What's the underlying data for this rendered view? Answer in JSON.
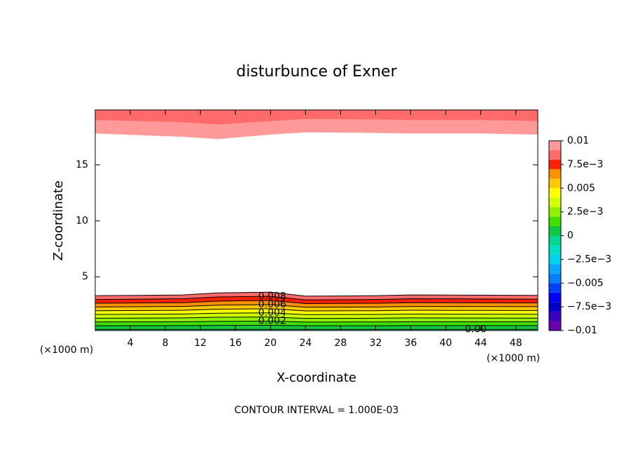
{
  "chart_data": {
    "type": "contour",
    "title": "disturbunce of Exner",
    "x_label": "X-coordinate",
    "y_label": "Z-coordinate",
    "x_unit_left": "(×1000 m)",
    "x_unit_right": "(×1000 m)",
    "footer": "CONTOUR INTERVAL = 1.000E-03",
    "xlim": [
      0,
      50.5
    ],
    "ylim": [
      0.2,
      19.9
    ],
    "xticks": [
      4,
      8,
      12,
      16,
      20,
      24,
      28,
      32,
      36,
      40,
      44,
      48
    ],
    "yticks": [
      5,
      10,
      15
    ],
    "x": [
      0,
      10,
      14,
      20,
      24,
      32,
      36,
      44,
      50.5
    ],
    "bottom_contours": [
      {
        "level": 0.009,
        "z": [
          3.31,
          3.38,
          3.56,
          3.63,
          3.27,
          3.31,
          3.38,
          3.36,
          3.34
        ]
      },
      {
        "level": 0.008,
        "label": "0.008",
        "z": [
          2.97,
          3.04,
          3.2,
          3.26,
          2.94,
          2.97,
          3.04,
          3.02,
          3.0
        ]
      },
      {
        "level": 0.007,
        "z": [
          2.64,
          2.69,
          2.83,
          2.89,
          2.61,
          2.64,
          2.69,
          2.68,
          2.67
        ]
      },
      {
        "level": 0.006,
        "label": "0.006",
        "z": [
          2.3,
          2.35,
          2.47,
          2.52,
          2.28,
          2.3,
          2.35,
          2.34,
          2.33
        ]
      },
      {
        "level": 0.005,
        "z": [
          1.97,
          2.01,
          2.11,
          2.15,
          1.95,
          1.97,
          2.01,
          2.0,
          1.99
        ]
      },
      {
        "level": 0.004,
        "label": "0.004",
        "z": [
          1.64,
          1.67,
          1.75,
          1.78,
          1.62,
          1.64,
          1.67,
          1.66,
          1.65
        ]
      },
      {
        "level": 0.003,
        "z": [
          1.3,
          1.33,
          1.39,
          1.41,
          1.29,
          1.3,
          1.33,
          1.32,
          1.31
        ]
      },
      {
        "level": 0.002,
        "label": "0.002",
        "z": [
          0.97,
          0.98,
          1.02,
          1.04,
          0.96,
          0.97,
          0.98,
          0.98,
          0.98
        ]
      },
      {
        "level": 0.001,
        "z": [
          0.63,
          0.64,
          0.66,
          0.67,
          0.63,
          0.63,
          0.64,
          0.64,
          0.64
        ]
      },
      {
        "level": 0,
        "label": "0.00",
        "z": [
          0.3,
          0.3,
          0.3,
          0.3,
          0.3,
          0.3,
          0.3,
          0.3,
          0.3
        ]
      }
    ],
    "top_contours": [
      {
        "level": 0.009,
        "z": [
          17.8,
          17.5,
          17.3,
          17.7,
          17.9,
          17.85,
          17.8,
          17.8,
          17.7
        ]
      },
      {
        "level": 0.008,
        "z": [
          19.0,
          18.8,
          18.6,
          18.9,
          19.1,
          19.05,
          19.0,
          19.0,
          18.9
        ]
      }
    ],
    "clim": [
      -0.01,
      0.01
    ],
    "colors": [
      "#6a00b0",
      "#3a00c0",
      "#0000c8",
      "#0000ff",
      "#0040ff",
      "#0080ff",
      "#00a8ff",
      "#00d0f0",
      "#00e0c0",
      "#00d890",
      "#10c840",
      "#40e000",
      "#90f000",
      "#d0ff00",
      "#ffff00",
      "#ffc800",
      "#ff9000",
      "#ff2000",
      "#ff6a6a",
      "#ff9a9a"
    ],
    "cticks": [
      {
        "value": 0.01,
        "label": "0.01"
      },
      {
        "value": 0.0075,
        "label": "7.5e−3"
      },
      {
        "value": 0.005,
        "label": "0.005"
      },
      {
        "value": 0.0025,
        "label": "2.5e−3"
      },
      0,
      {
        "value": -0.0025,
        "label": "−2.5e−3"
      },
      {
        "value": -0.005,
        "label": "−0.005"
      },
      {
        "value": -0.0075,
        "label": "−7.5e−3"
      },
      {
        "value": -0.01,
        "label": "−0.01"
      }
    ]
  }
}
